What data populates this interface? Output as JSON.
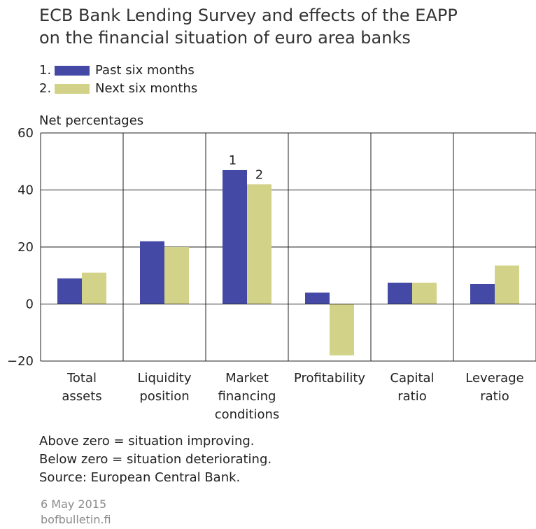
{
  "title_lines": [
    "ECB Bank Lending Survey and effects of the EAPP",
    "on the financial situation of euro area banks"
  ],
  "legend": [
    {
      "num": "1.",
      "label": "Past six months",
      "color": "#4449a6"
    },
    {
      "num": "2.",
      "label": "Next six months",
      "color": "#d2d389"
    }
  ],
  "notes": [
    "Above zero = situation improving.",
    "Below zero = situation deteriorating.",
    "Source: European Central Bank."
  ],
  "footer": {
    "date": "6 May 2015",
    "site": "bofbulletin.fi"
  },
  "chart_data": {
    "type": "bar",
    "ylabel": "Net percentages",
    "ylim": [
      -20,
      60
    ],
    "yticks": [
      "60",
      "40",
      "20",
      "0",
      "−20"
    ],
    "ytick_values": [
      60,
      40,
      20,
      0,
      -20
    ],
    "categories": [
      [
        "Total",
        "assets"
      ],
      [
        "Liquidity",
        "position"
      ],
      [
        "Market",
        "financing",
        "conditions"
      ],
      [
        "Profitability"
      ],
      [
        "Capital",
        "ratio"
      ],
      [
        "Leverage",
        "ratio"
      ]
    ],
    "series": [
      {
        "values": [
          9,
          22,
          47,
          4,
          7.5,
          7
        ]
      },
      {
        "values": [
          11,
          20,
          42,
          -18,
          7.5,
          13.5
        ]
      }
    ],
    "annotations": [
      {
        "text": "1",
        "category": 2,
        "series": 0
      },
      {
        "text": "2",
        "category": 2,
        "series": 1
      }
    ],
    "grid": true
  }
}
